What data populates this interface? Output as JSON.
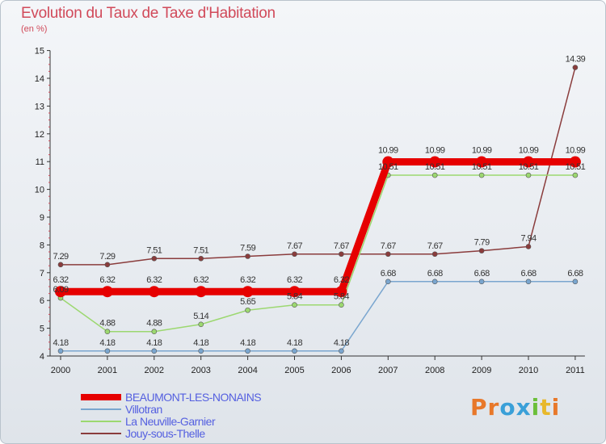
{
  "header": {
    "title": "Evolution du Taux de Taxe d'Habitation",
    "subtitle": "(en %)"
  },
  "logo": {
    "letters": [
      "P",
      "r",
      "o",
      "x",
      "i",
      "t",
      "i"
    ],
    "colors": [
      "#e8782a",
      "#e8782a",
      "#3aa0d8",
      "#3aa0d8",
      "#6bbf3a",
      "#e8b82a",
      "#e8782a"
    ]
  },
  "chart_data": {
    "type": "line",
    "x": [
      "2000",
      "2001",
      "2002",
      "2003",
      "2004",
      "2005",
      "2006",
      "2007",
      "2008",
      "2009",
      "2010",
      "2011"
    ],
    "yticks": [
      "4",
      "5",
      "6",
      "7",
      "8",
      "9",
      "10",
      "11",
      "12",
      "13",
      "14",
      "15"
    ],
    "ylim": [
      4,
      15
    ],
    "grid": false,
    "legend_position": "bottom-left",
    "series": [
      {
        "name": "BEAUMONT-LES-NONAINS",
        "color": "#e60000",
        "values": [
          6.32,
          6.32,
          6.32,
          6.32,
          6.32,
          6.32,
          6.32,
          10.99,
          10.99,
          10.99,
          10.99,
          10.99
        ],
        "labels": [
          "6.32",
          "6.32",
          "6.32",
          "6.32",
          "6.32",
          "6.32",
          "6.32",
          "10.99",
          "10.99",
          "10.99",
          "10.99",
          "10.99"
        ]
      },
      {
        "name": "Villotran",
        "color": "#7aa6cf",
        "values": [
          4.18,
          4.18,
          4.18,
          4.18,
          4.18,
          4.18,
          4.18,
          6.68,
          6.68,
          6.68,
          6.68,
          6.68
        ],
        "labels": [
          "4.18",
          "4.18",
          "4.18",
          "4.18",
          "4.18",
          "4.18",
          "4.18",
          "6.68",
          "6.68",
          "6.68",
          "6.68",
          "6.68"
        ]
      },
      {
        "name": "La Neuville-Garnier",
        "color": "#9cd870",
        "values": [
          6.09,
          4.88,
          4.88,
          5.14,
          5.65,
          5.84,
          5.84,
          10.51,
          10.51,
          10.51,
          10.51,
          10.51
        ],
        "labels": [
          "6.09",
          "4.88",
          "4.88",
          "5.14",
          "5.65",
          "5.84",
          "5.84",
          "10.51",
          "10.51",
          "10.51",
          "10.51",
          "10.51"
        ]
      },
      {
        "name": "Jouy-sous-Thelle",
        "color": "#8a3c3c",
        "values": [
          7.29,
          7.29,
          7.51,
          7.51,
          7.59,
          7.67,
          7.67,
          7.67,
          7.67,
          7.79,
          7.94,
          14.39
        ],
        "labels": [
          "7.29",
          "7.29",
          "7.51",
          "7.51",
          "7.59",
          "7.67",
          "7.67",
          "7.67",
          "7.67",
          "7.79",
          "7.94",
          "14.39"
        ]
      }
    ]
  }
}
